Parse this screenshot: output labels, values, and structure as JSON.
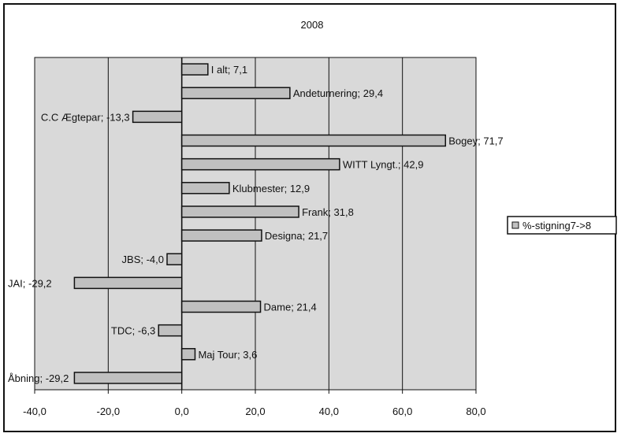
{
  "chart_data": {
    "type": "bar",
    "orientation": "horizontal",
    "title": "2008",
    "xlabel": "",
    "ylabel": "",
    "xlim": [
      -40,
      80
    ],
    "x_ticks": [
      -40,
      -20,
      0,
      20,
      40,
      60,
      80
    ],
    "x_tick_labels": [
      "-40,0",
      "-20,0",
      "0,0",
      "20,0",
      "40,0",
      "60,0",
      "80,0"
    ],
    "grid": true,
    "legend_position": "right",
    "series": [
      {
        "name": "%-stigning7->8",
        "color": "#c0c0c0",
        "points": [
          {
            "category": "I alt",
            "value": 7.1,
            "label": "I alt; 7,1"
          },
          {
            "category": "Andeturnering",
            "value": 29.4,
            "label": "Andeturnering; 29,4"
          },
          {
            "category": "C.C Ægtepar",
            "value": -13.3,
            "label": "C.C Ægtepar; -13,3"
          },
          {
            "category": "Bogey",
            "value": 71.7,
            "label": "Bogey; 71,7"
          },
          {
            "category": "WITT Lyngt.",
            "value": 42.9,
            "label": "WITT Lyngt.; 42,9"
          },
          {
            "category": "Klubmester",
            "value": 12.9,
            "label": "Klubmester; 12,9"
          },
          {
            "category": "Frank",
            "value": 31.8,
            "label": "Frank; 31,8"
          },
          {
            "category": "Designa",
            "value": 21.7,
            "label": "Designa; 21,7"
          },
          {
            "category": "JBS",
            "value": -4.0,
            "label": "JBS; -4,0"
          },
          {
            "category": "JAI",
            "value": -29.2,
            "label": "JAI; -29,2"
          },
          {
            "category": "Dame",
            "value": 21.4,
            "label": "Dame; 21,4"
          },
          {
            "category": "TDC",
            "value": -6.3,
            "label": "TDC; -6,3"
          },
          {
            "category": "Maj Tour",
            "value": 3.6,
            "label": "Maj Tour; 3,6"
          },
          {
            "category": "Åbning",
            "value": -29.2,
            "label": "Åbning; -29,2"
          }
        ]
      }
    ]
  },
  "colors": {
    "plot_background": "#d9d9d9",
    "bar_fill": "#c0c0c0",
    "bar_stroke": "#111111",
    "gridline": "#111111"
  }
}
